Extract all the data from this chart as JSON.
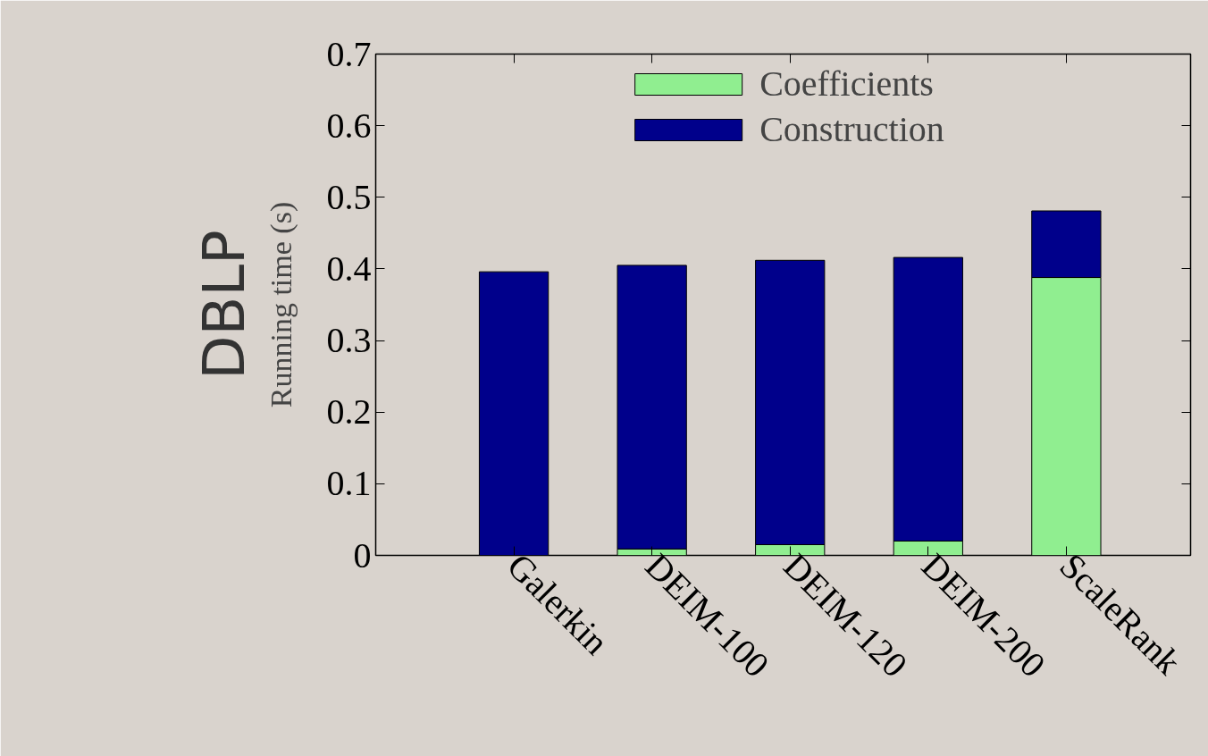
{
  "chart_data": {
    "type": "bar",
    "stacked": true,
    "ylabel": "Running time (s)",
    "annotations": [
      "DBLP"
    ],
    "categories": [
      "Galerkin",
      "DEIM-100",
      "DEIM-120",
      "DEIM-200",
      "ScaleRank"
    ],
    "series": [
      {
        "name": "Coefficients",
        "color": "#90ee90",
        "values": [
          0,
          0.009,
          0.015,
          0.02,
          0.388
        ]
      },
      {
        "name": "Construction",
        "color": "#00008b",
        "values": [
          0.396,
          0.396,
          0.397,
          0.396,
          0.093
        ]
      }
    ],
    "ylim": [
      0,
      0.7
    ],
    "yticks": [
      0,
      0.1,
      0.2,
      0.3,
      0.4,
      0.5,
      0.6,
      0.7
    ],
    "grid": false,
    "legend": "top"
  }
}
